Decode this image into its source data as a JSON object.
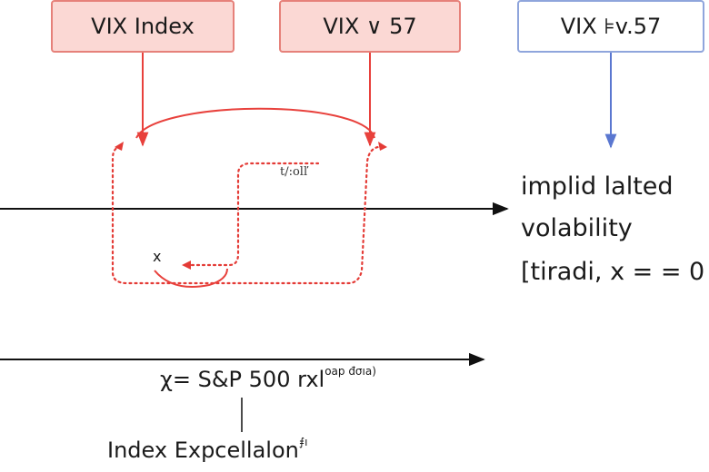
{
  "boxes": {
    "left": "VIX Index",
    "middle": "VIX ∨ 57",
    "right": "VIX ⊧v.57"
  },
  "annotations": {
    "curve_top": "t/:olľ",
    "curve_x": "x"
  },
  "side_text": {
    "line1": "implid lalted",
    "line2": "volability",
    "line3": "[tiradi, x = = 0"
  },
  "bottom": {
    "axis_label": "χ= S&P 500 rxl",
    "axis_sup": "oap đσıa)",
    "caption": "Index Expcellalon",
    "caption_sup": "⨎ı"
  },
  "colors": {
    "red": "#e8413c",
    "red_dotted": "#e43b36",
    "blue": "#5a77d0",
    "box_red_fill": "#fbd8d4",
    "box_red_border": "#e6817a",
    "box_blue_border": "#8fa5dc",
    "axis": "#111111"
  }
}
